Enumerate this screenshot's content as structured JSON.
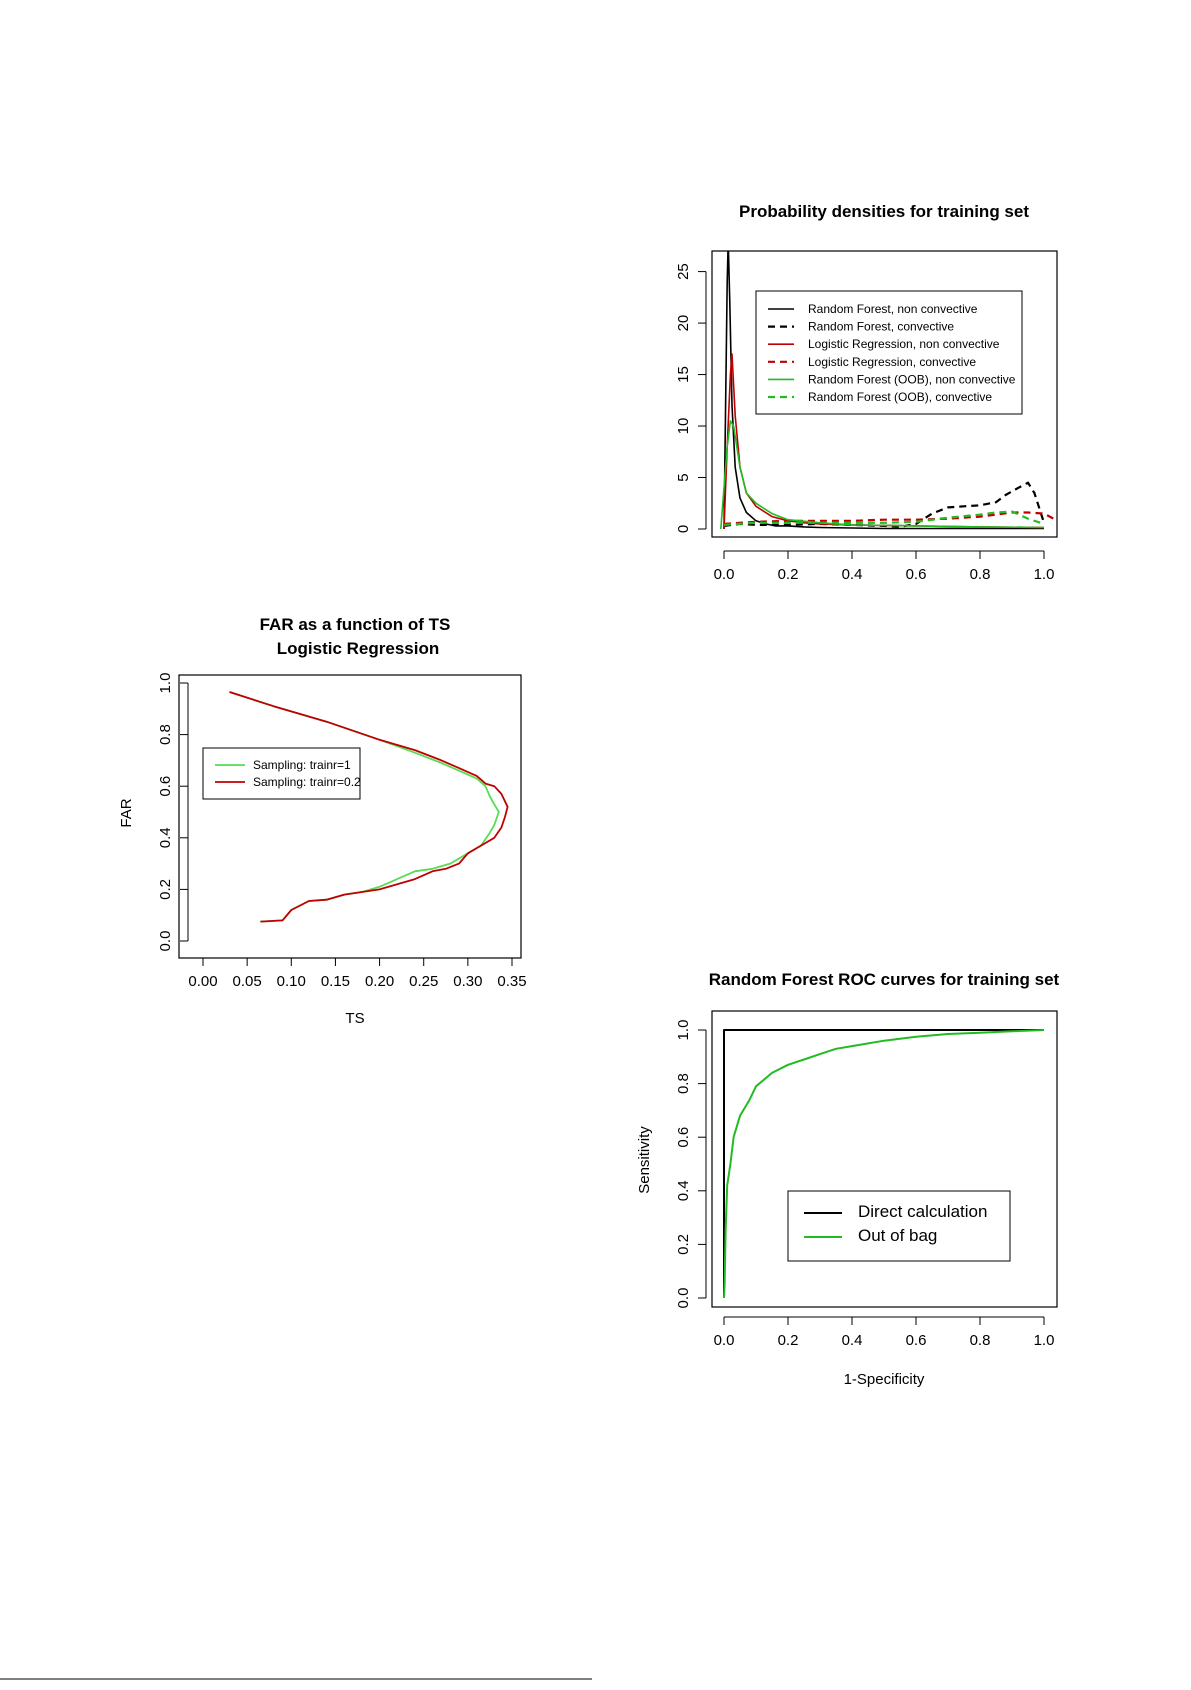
{
  "colors": {
    "black": "#000000",
    "red": "#c00000",
    "green": "#22bb22",
    "lightgreen": "#55dd55"
  },
  "chart_data": [
    {
      "type": "line",
      "title": "Probability densities for training set",
      "xlim": [
        0,
        1
      ],
      "ylim": [
        0,
        27
      ],
      "xticks": [
        "0.0",
        "0.2",
        "0.4",
        "0.6",
        "0.8",
        "1.0"
      ],
      "yticks": [
        "0",
        "5",
        "10",
        "15",
        "20",
        "25"
      ],
      "legend_position": "top-right",
      "series": [
        {
          "name": "Random Forest, non convective",
          "color": "black",
          "dash": false,
          "width": 1.6,
          "x": [
            0,
            0.005,
            0.01,
            0.013,
            0.018,
            0.025,
            0.035,
            0.05,
            0.07,
            0.1,
            0.13,
            0.16,
            0.2,
            0.25,
            0.3,
            0.4,
            0.5,
            0.6,
            0.7,
            0.8,
            0.9,
            1.0
          ],
          "y": [
            0,
            12,
            24,
            28,
            22,
            12,
            6,
            3,
            1.6,
            0.8,
            0.5,
            0.3,
            0.3,
            0.2,
            0.15,
            0.1,
            0.05,
            0.05,
            0.05,
            0.05,
            0.05,
            0.05
          ]
        },
        {
          "name": "Random Forest, convective",
          "color": "black",
          "dash": true,
          "width": 2.2,
          "x": [
            0,
            0.05,
            0.1,
            0.2,
            0.3,
            0.4,
            0.5,
            0.55,
            0.6,
            0.65,
            0.7,
            0.75,
            0.8,
            0.85,
            0.88,
            0.92,
            0.95,
            0.97,
            1.0
          ],
          "y": [
            0.3,
            0.5,
            0.4,
            0.4,
            0.5,
            0.4,
            0.3,
            0.2,
            0.5,
            1.5,
            2.1,
            2.2,
            2.3,
            2.6,
            3.3,
            4.0,
            4.5,
            3.5,
            0.6
          ]
        },
        {
          "name": "Logistic Regression, non convective",
          "color": "red",
          "dash": false,
          "width": 1.6,
          "x": [
            0,
            0.01,
            0.02,
            0.025,
            0.035,
            0.05,
            0.07,
            0.1,
            0.15,
            0.2,
            0.25,
            0.3,
            0.4,
            0.5,
            0.6,
            0.8,
            1.0
          ],
          "y": [
            0,
            8,
            15,
            17,
            11,
            6,
            3.5,
            2.2,
            1.2,
            0.8,
            0.6,
            0.5,
            0.4,
            0.35,
            0.3,
            0.2,
            0.15
          ]
        },
        {
          "name": "Logistic Regression, convective",
          "color": "red",
          "dash": true,
          "width": 2.2,
          "x": [
            0,
            0.1,
            0.2,
            0.3,
            0.4,
            0.5,
            0.6,
            0.7,
            0.8,
            0.85,
            0.9,
            0.95,
            1.0,
            1.03
          ],
          "y": [
            0.5,
            0.7,
            0.8,
            0.8,
            0.8,
            0.9,
            0.9,
            1.0,
            1.2,
            1.4,
            1.6,
            1.6,
            1.5,
            1.0
          ]
        },
        {
          "name": "Random Forest (OOB), non convective",
          "color": "green",
          "dash": false,
          "width": 1.6,
          "x": [
            -0.01,
            0,
            0.01,
            0.02,
            0.03,
            0.05,
            0.07,
            0.1,
            0.15,
            0.2,
            0.3,
            0.4,
            0.6,
            0.8,
            1.0
          ],
          "y": [
            0,
            4,
            8,
            10.5,
            10,
            6,
            3.5,
            2.5,
            1.5,
            0.9,
            0.6,
            0.4,
            0.3,
            0.2,
            0.15
          ]
        },
        {
          "name": "Random Forest (OOB), convective",
          "color": "green",
          "dash": true,
          "width": 2.2,
          "x": [
            0,
            0.1,
            0.2,
            0.3,
            0.4,
            0.5,
            0.6,
            0.7,
            0.8,
            0.85,
            0.9,
            0.95,
            1.0
          ],
          "y": [
            0.4,
            0.6,
            0.6,
            0.6,
            0.6,
            0.6,
            0.7,
            1.1,
            1.4,
            1.6,
            1.7,
            1.0,
            0.5
          ]
        }
      ]
    },
    {
      "type": "line",
      "title": "FAR as a function of TS",
      "subtitle": "Logistic Regression",
      "xlabel": "TS",
      "ylabel": "FAR",
      "xlim": [
        0,
        0.35
      ],
      "ylim": [
        0,
        1
      ],
      "xticks": [
        "0.00",
        "0.05",
        "0.10",
        "0.15",
        "0.20",
        "0.25",
        "0.30",
        "0.35"
      ],
      "yticks": [
        "0.0",
        "0.2",
        "0.4",
        "0.6",
        "0.8",
        "1.0"
      ],
      "legend_position": "top-left",
      "series": [
        {
          "name": "Sampling: trainr=1",
          "color": "lightgreen",
          "dash": false,
          "width": 1.8,
          "x": [
            0.03,
            0.08,
            0.14,
            0.2,
            0.24,
            0.27,
            0.29,
            0.31,
            0.32,
            0.325,
            0.33,
            0.335,
            0.33,
            0.325,
            0.315,
            0.3,
            0.28,
            0.26,
            0.24,
            0.22,
            0.2,
            0.18,
            0.16,
            0.14,
            0.12,
            0.1,
            0.09,
            0.065
          ],
          "y": [
            0.965,
            0.91,
            0.85,
            0.78,
            0.73,
            0.69,
            0.66,
            0.63,
            0.6,
            0.56,
            0.53,
            0.5,
            0.45,
            0.42,
            0.37,
            0.34,
            0.3,
            0.28,
            0.27,
            0.24,
            0.21,
            0.19,
            0.18,
            0.16,
            0.155,
            0.12,
            0.08,
            0.075
          ]
        },
        {
          "name": "Sampling: trainr=0.2",
          "color": "red",
          "dash": false,
          "width": 1.8,
          "x": [
            0.03,
            0.08,
            0.14,
            0.2,
            0.24,
            0.27,
            0.29,
            0.31,
            0.32,
            0.33,
            0.338,
            0.345,
            0.342,
            0.338,
            0.33,
            0.32,
            0.31,
            0.3,
            0.29,
            0.275,
            0.26,
            0.24,
            0.22,
            0.2,
            0.18,
            0.16,
            0.14,
            0.12,
            0.1,
            0.09,
            0.065
          ],
          "y": [
            0.965,
            0.91,
            0.85,
            0.78,
            0.74,
            0.7,
            0.67,
            0.64,
            0.61,
            0.6,
            0.57,
            0.52,
            0.48,
            0.44,
            0.4,
            0.38,
            0.36,
            0.34,
            0.3,
            0.28,
            0.27,
            0.24,
            0.22,
            0.2,
            0.19,
            0.18,
            0.16,
            0.155,
            0.12,
            0.08,
            0.075
          ]
        }
      ]
    },
    {
      "type": "line",
      "title": "Random Forest ROC curves for training set",
      "xlabel": "1-Specificity",
      "ylabel": "Sensitivity",
      "xlim": [
        0,
        1
      ],
      "ylim": [
        0,
        1
      ],
      "xticks": [
        "0.0",
        "0.2",
        "0.4",
        "0.6",
        "0.8",
        "1.0"
      ],
      "yticks": [
        "0.0",
        "0.2",
        "0.4",
        "0.6",
        "0.8",
        "1.0"
      ],
      "legend_position": "bottom-right",
      "series": [
        {
          "name": "Direct calculation",
          "color": "black",
          "dash": false,
          "width": 2,
          "x": [
            0,
            0,
            0,
            1
          ],
          "y": [
            0,
            0.33,
            1,
            1
          ]
        },
        {
          "name": "Out of bag",
          "color": "green",
          "dash": false,
          "width": 2,
          "x": [
            0,
            0.002,
            0.005,
            0.01,
            0.02,
            0.03,
            0.05,
            0.08,
            0.1,
            0.15,
            0.2,
            0.25,
            0.3,
            0.35,
            0.4,
            0.5,
            0.6,
            0.7,
            0.8,
            0.9,
            1.0
          ],
          "y": [
            0,
            0.05,
            0.25,
            0.42,
            0.5,
            0.6,
            0.68,
            0.74,
            0.79,
            0.84,
            0.87,
            0.89,
            0.91,
            0.93,
            0.94,
            0.96,
            0.975,
            0.985,
            0.99,
            0.995,
            1.0
          ]
        }
      ]
    }
  ]
}
